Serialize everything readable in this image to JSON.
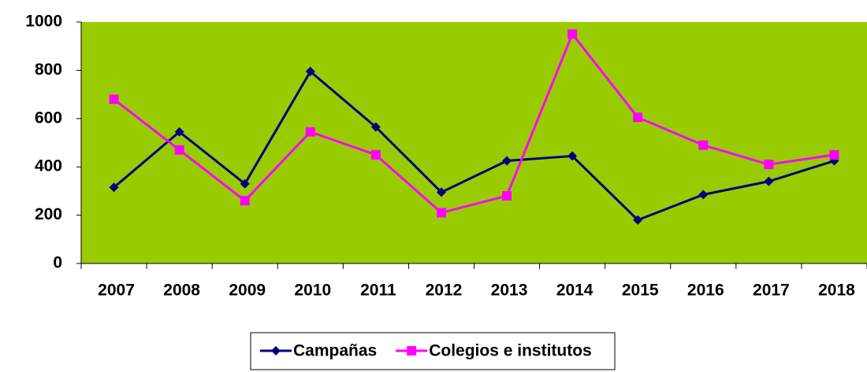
{
  "chart_data": {
    "type": "line",
    "categories": [
      "2007",
      "2008",
      "2009",
      "2010",
      "2011",
      "2012",
      "2013",
      "2014",
      "2015",
      "2016",
      "2017",
      "2018"
    ],
    "series": [
      {
        "name": "Campañas",
        "color": "#000080",
        "marker": "diamond",
        "values": [
          315,
          545,
          330,
          795,
          565,
          295,
          425,
          445,
          180,
          285,
          340,
          425
        ]
      },
      {
        "name": "Colegios e institutos",
        "color": "#ff00ff",
        "marker": "square",
        "values": [
          680,
          470,
          260,
          545,
          450,
          210,
          280,
          950,
          605,
          490,
          410,
          450
        ]
      }
    ],
    "ylim": [
      0,
      1000
    ],
    "yticks": [
      0,
      200,
      400,
      600,
      800,
      1000
    ],
    "plot_background": "#99cc00",
    "legend": "bottom"
  }
}
